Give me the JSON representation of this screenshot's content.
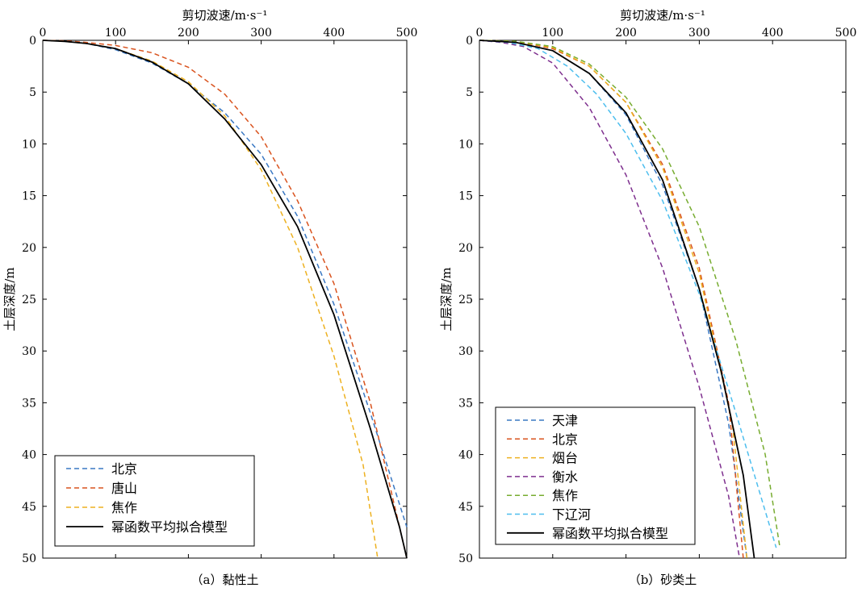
{
  "chart_data": [
    {
      "type": "line",
      "caption": "（a）黏性土",
      "xlabel": "剪切波速/m·s⁻¹",
      "ylabel": "土层深度/m",
      "xlim": [
        0,
        500
      ],
      "ylim": [
        0,
        50
      ],
      "y_reversed": true,
      "x_axis_position": "top",
      "xticks": [
        0,
        100,
        200,
        300,
        400,
        500
      ],
      "yticks": [
        0,
        5,
        10,
        15,
        20,
        25,
        30,
        35,
        40,
        45,
        50
      ],
      "legend_position": "bottom-left",
      "series": [
        {
          "name": "北京",
          "color": "#3a78c3",
          "dash": "dashed",
          "points": [
            [
              0,
              0
            ],
            [
              30,
              0.1
            ],
            [
              60,
              0.3
            ],
            [
              100,
              0.9
            ],
            [
              150,
              2.2
            ],
            [
              200,
              4.2
            ],
            [
              250,
              7.0
            ],
            [
              300,
              11.0
            ],
            [
              350,
              17.0
            ],
            [
              400,
              25.5
            ],
            [
              450,
              36.0
            ],
            [
              500,
              47.0
            ]
          ]
        },
        {
          "name": "唐山",
          "color": "#d9531e",
          "dash": "dashed",
          "points": [
            [
              0,
              0
            ],
            [
              30,
              0.05
            ],
            [
              60,
              0.2
            ],
            [
              100,
              0.5
            ],
            [
              150,
              1.2
            ],
            [
              200,
              2.6
            ],
            [
              250,
              5.2
            ],
            [
              300,
              9.3
            ],
            [
              350,
              15.5
            ],
            [
              400,
              23.5
            ],
            [
              450,
              35.0
            ],
            [
              500,
              50.0
            ]
          ]
        },
        {
          "name": "焦作",
          "color": "#edb120",
          "dash": "dashed",
          "points": [
            [
              0,
              0
            ],
            [
              30,
              0.1
            ],
            [
              60,
              0.3
            ],
            [
              100,
              0.8
            ],
            [
              150,
              2.0
            ],
            [
              200,
              4.0
            ],
            [
              250,
              7.3
            ],
            [
              300,
              12.5
            ],
            [
              350,
              20.0
            ],
            [
              400,
              30.5
            ],
            [
              440,
              41.0
            ],
            [
              460,
              50.0
            ]
          ]
        },
        {
          "name": "幂函数平均拟合模型",
          "color": "#000000",
          "dash": "solid",
          "points": [
            [
              0,
              0
            ],
            [
              30,
              0.1
            ],
            [
              60,
              0.3
            ],
            [
              100,
              0.8
            ],
            [
              150,
              2.1
            ],
            [
              200,
              4.2
            ],
            [
              250,
              7.6
            ],
            [
              300,
              12.0
            ],
            [
              350,
              18.0
            ],
            [
              400,
              26.5
            ],
            [
              450,
              37.5
            ],
            [
              490,
              47.0
            ],
            [
              500,
              50.0
            ]
          ]
        }
      ]
    },
    {
      "type": "line",
      "caption": "（b）砂类土",
      "xlabel": "剪切波速/m·s⁻¹",
      "ylabel": "土层深度/m",
      "xlim": [
        0,
        500
      ],
      "ylim": [
        0,
        50
      ],
      "y_reversed": true,
      "x_axis_position": "top",
      "xticks": [
        0,
        100,
        200,
        300,
        400,
        500
      ],
      "yticks": [
        0,
        5,
        10,
        15,
        20,
        25,
        30,
        35,
        40,
        45,
        50
      ],
      "legend_position": "bottom-left",
      "series": [
        {
          "name": "天津",
          "color": "#3a78c3",
          "dash": "dashed",
          "points": [
            [
              0,
              0
            ],
            [
              50,
              0.2
            ],
            [
              100,
              1.0
            ],
            [
              150,
              3.2
            ],
            [
              200,
              7.2
            ],
            [
              250,
              14.0
            ],
            [
              300,
              24.0
            ],
            [
              340,
              37.0
            ],
            [
              365,
              50.0
            ]
          ]
        },
        {
          "name": "北京",
          "color": "#d9531e",
          "dash": "dashed",
          "points": [
            [
              0,
              0
            ],
            [
              50,
              0.1
            ],
            [
              100,
              0.8
            ],
            [
              150,
              2.5
            ],
            [
              200,
              6.0
            ],
            [
              250,
              12.0
            ],
            [
              300,
              22.0
            ],
            [
              340,
              35.0
            ],
            [
              360,
              50.0
            ]
          ]
        },
        {
          "name": "烟台",
          "color": "#edb120",
          "dash": "dashed",
          "points": [
            [
              0,
              0
            ],
            [
              50,
              0.1
            ],
            [
              100,
              0.7
            ],
            [
              150,
              2.5
            ],
            [
              200,
              6.0
            ],
            [
              250,
              12.3
            ],
            [
              300,
              22.5
            ],
            [
              345,
              37.0
            ],
            [
              365,
              50.0
            ]
          ]
        },
        {
          "name": "衡水",
          "color": "#7e2f8e",
          "dash": "dashed",
          "points": [
            [
              0,
              0
            ],
            [
              30,
              0.2
            ],
            [
              60,
              0.6
            ],
            [
              100,
              2.2
            ],
            [
              150,
              6.5
            ],
            [
              200,
              13.0
            ],
            [
              250,
              22.0
            ],
            [
              300,
              33.5
            ],
            [
              340,
              44.0
            ],
            [
              355,
              50.0
            ]
          ]
        },
        {
          "name": "焦作",
          "color": "#77ac30",
          "dash": "dashed",
          "points": [
            [
              0,
              0
            ],
            [
              50,
              0.1
            ],
            [
              100,
              0.6
            ],
            [
              150,
              2.3
            ],
            [
              200,
              5.5
            ],
            [
              250,
              10.5
            ],
            [
              300,
              18.0
            ],
            [
              350,
              29.0
            ],
            [
              390,
              40.0
            ],
            [
              410,
              49.0
            ]
          ]
        },
        {
          "name": "下辽河",
          "color": "#4dbeee",
          "dash": "dashed",
          "points": [
            [
              0,
              0
            ],
            [
              40,
              0.2
            ],
            [
              80,
              0.8
            ],
            [
              120,
              2.5
            ],
            [
              160,
              5.2
            ],
            [
              200,
              9.0
            ],
            [
              250,
              15.5
            ],
            [
              300,
              24.5
            ],
            [
              350,
              36.0
            ],
            [
              405,
              49.0
            ]
          ]
        },
        {
          "name": "幂函数平均拟合模型",
          "color": "#000000",
          "dash": "solid",
          "points": [
            [
              0,
              0
            ],
            [
              50,
              0.2
            ],
            [
              100,
              1.0
            ],
            [
              150,
              3.2
            ],
            [
              200,
              7.0
            ],
            [
              250,
              13.5
            ],
            [
              300,
              24.0
            ],
            [
              330,
              32.0
            ],
            [
              360,
              42.0
            ],
            [
              375,
              50.0
            ]
          ]
        }
      ]
    }
  ]
}
